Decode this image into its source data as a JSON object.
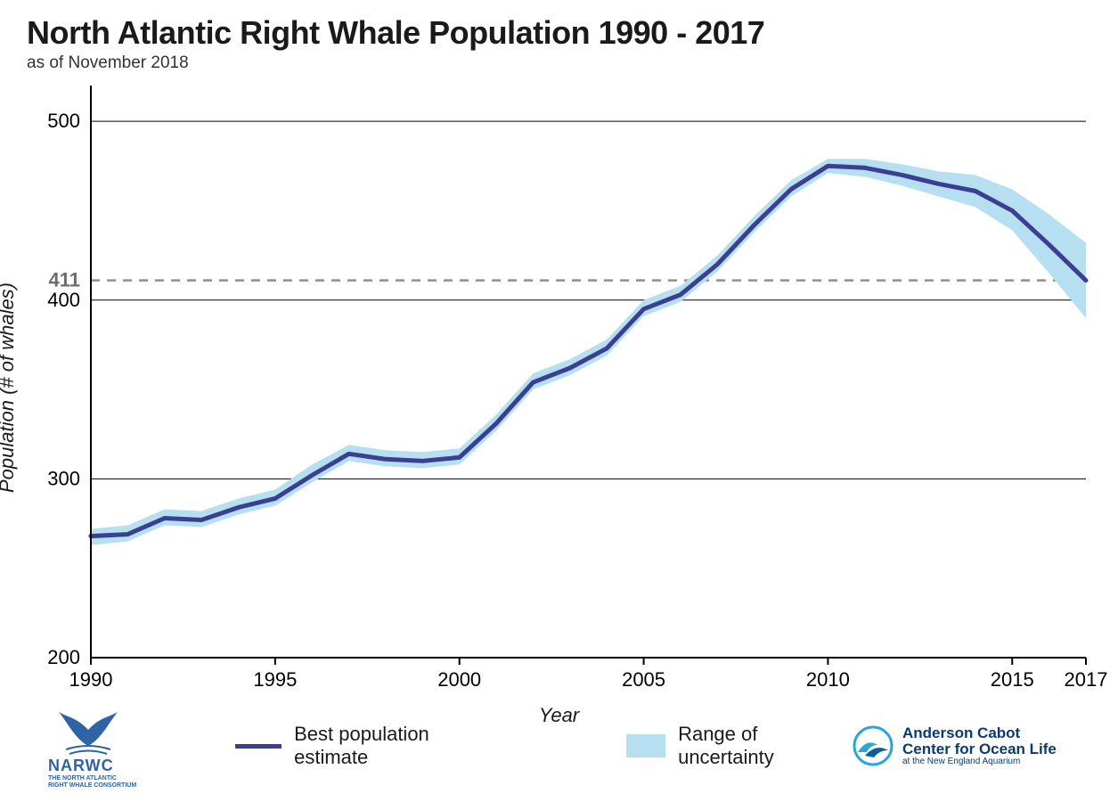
{
  "title": "North Atlantic Right Whale Population 1990 - 2017",
  "subtitle": "as of November 2018",
  "chart": {
    "type": "line-with-band",
    "xlabel": "Year",
    "ylabel": "Population (# of whales)",
    "xlim": [
      1990,
      2017
    ],
    "ylim": [
      200,
      520
    ],
    "xticks": [
      1990,
      1995,
      2000,
      2005,
      2010,
      2015,
      2017
    ],
    "yticks": [
      200,
      300,
      400,
      500
    ],
    "reference_value": 411,
    "reference_label": "411",
    "axis_fontsize": 22,
    "tick_fontsize": 22,
    "title_fontsize": 36,
    "subtitle_fontsize": 19,
    "background_color": "#ffffff",
    "axis_color": "#000000",
    "grid_color": "#000000",
    "grid_width": 1,
    "reference_color": "#8f8f8f",
    "reference_dash": "10 8",
    "line_color": "#3b3f91",
    "line_width": 5,
    "band_color": "#b6e0f2",
    "band_opacity": 1.0,
    "years": [
      1990,
      1991,
      1992,
      1993,
      1994,
      1995,
      1996,
      1997,
      1998,
      1999,
      2000,
      2001,
      2002,
      2003,
      2004,
      2005,
      2006,
      2007,
      2008,
      2009,
      2010,
      2011,
      2012,
      2013,
      2014,
      2015,
      2016,
      2017
    ],
    "estimate": [
      268,
      269,
      278,
      277,
      284,
      289,
      302,
      314,
      311,
      310,
      312,
      331,
      354,
      362,
      373,
      395,
      403,
      420,
      442,
      462,
      475,
      474,
      470,
      465,
      461,
      450,
      431,
      411
    ],
    "band_lower": [
      263,
      265,
      274,
      273,
      280,
      285,
      298,
      310,
      307,
      306,
      308,
      327,
      350,
      358,
      369,
      391,
      399,
      416,
      438,
      458,
      471,
      469,
      464,
      458,
      452,
      439,
      415,
      390
    ],
    "band_upper": [
      272,
      274,
      283,
      282,
      289,
      294,
      308,
      319,
      316,
      315,
      317,
      336,
      359,
      367,
      378,
      400,
      408,
      425,
      447,
      467,
      479,
      479,
      476,
      472,
      470,
      462,
      448,
      432
    ]
  },
  "legend": {
    "estimate_label": "Best population estimate",
    "band_label": "Range of uncertainty"
  },
  "logos": {
    "narwc_acronym": "NARWC",
    "narwc_line1": "THE NORTH ATLANTIC",
    "narwc_line2": "RIGHT WHALE CONSORTIUM",
    "ac_line1": "Anderson Cabot",
    "ac_line2": "Center for Ocean Life",
    "ac_line3": "at the New England Aquarium"
  }
}
